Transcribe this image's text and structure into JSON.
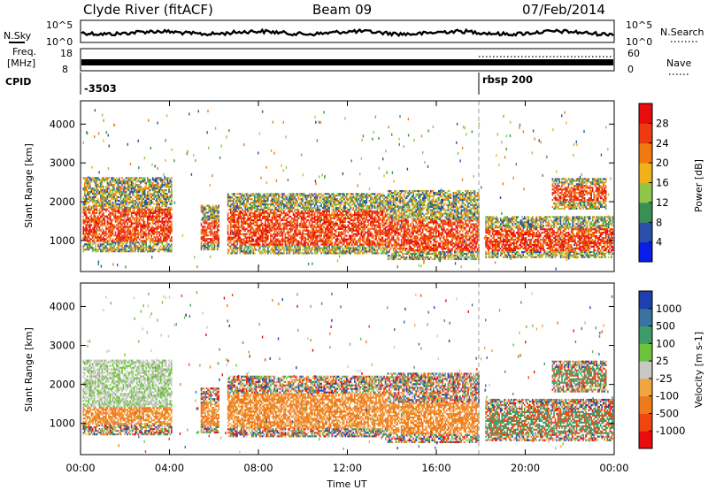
{
  "header": {
    "station": "Clyde River (fitACF)",
    "beam": "Beam 09",
    "date": "07/Feb/2014"
  },
  "summary": {
    "nsky_label": "N.Sky",
    "nsearch_label": "N.Search",
    "freq_label_1": "Freq.",
    "freq_label_2": "[MHz]",
    "nave_label": "Nave",
    "cpid_label": "CPID",
    "nsky_ticks": [
      "10^5",
      "10^0"
    ],
    "nsearch_ticks": [
      "10^5",
      "10^0"
    ],
    "freq_ticks": [
      "18",
      "8"
    ],
    "nave_ticks": [
      "60",
      "0"
    ],
    "cpid_segments": [
      {
        "label": "-3503",
        "start_hour": 0
      },
      {
        "label": "rbsp 200",
        "start_hour": 18
      }
    ]
  },
  "chart_data": [
    {
      "type": "heatmap",
      "title": "",
      "parameter": "Power",
      "xlabel": "",
      "ylabel": "Slant Range [km]",
      "xlim_hours": [
        0,
        24
      ],
      "ylim_km": [
        200,
        4600
      ],
      "yticks": [
        1000,
        2000,
        3000,
        4000
      ],
      "colorbar": {
        "label": "Power [dB]",
        "ticks": [
          "4",
          "8",
          "12",
          "16",
          "20",
          "24",
          "28"
        ],
        "colors": [
          "#0a1ee6",
          "#2b4fa8",
          "#3a8f55",
          "#8fc64a",
          "#f0b21a",
          "#f07a10",
          "#ee3a10",
          "#e80c0c"
        ],
        "range": [
          0,
          32
        ]
      },
      "scale": "linear",
      "legend": "colorbar-right",
      "cpid_change_hour": 18
    },
    {
      "type": "heatmap",
      "title": "",
      "parameter": "Velocity",
      "xlabel": "Time UT",
      "ylabel": "Slant Range [km]",
      "xlim_hours": [
        0,
        24
      ],
      "ylim_km": [
        200,
        4600
      ],
      "yticks": [
        1000,
        2000,
        3000,
        4000
      ],
      "xticks": [
        "00:00",
        "04:00",
        "08:00",
        "12:00",
        "16:00",
        "20:00",
        "00:00"
      ],
      "colorbar": {
        "label": "Velocity [m s-1]",
        "ticks": [
          "1000",
          "500",
          "100",
          "25",
          "-25",
          "-100",
          "-500",
          "-1000"
        ],
        "colors": [
          "#1e3fae",
          "#3a72a0",
          "#3f9c6a",
          "#6cc23a",
          "#c8c8c4",
          "#f0a640",
          "#ee7a1c",
          "#f0460e",
          "#e80c0c"
        ]
      },
      "scale": "linear",
      "legend": "colorbar-right",
      "cpid_change_hour": 18
    }
  ]
}
